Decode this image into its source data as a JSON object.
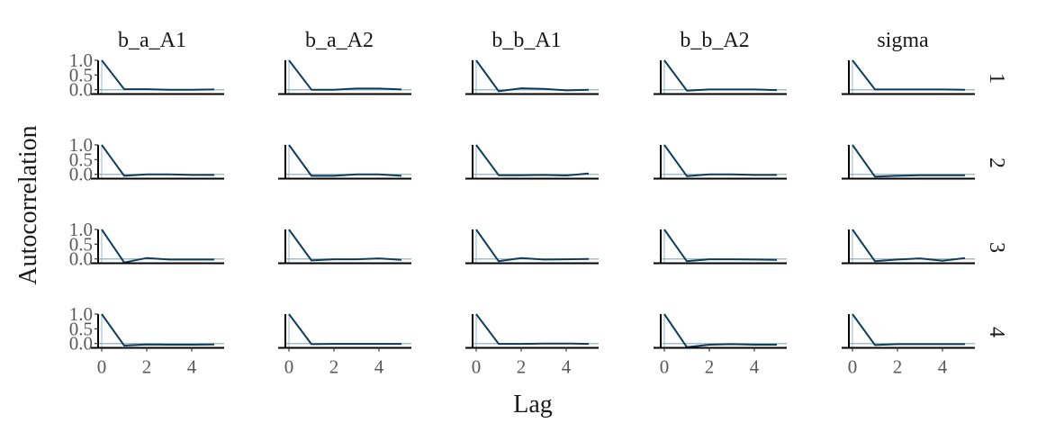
{
  "chart_data": {
    "type": "line",
    "facets_x": [
      "b_a_A1",
      "b_a_A2",
      "b_b_A1",
      "b_b_A2",
      "sigma"
    ],
    "facets_y": [
      "1",
      "2",
      "3",
      "4"
    ],
    "xlabel": "Lag",
    "ylabel": "Autocorrelation",
    "x": [
      0,
      1,
      2,
      3,
      4,
      5
    ],
    "xticks": [
      "0",
      "2",
      "4"
    ],
    "yticks": [
      "0.0",
      "0.5",
      "1.0"
    ],
    "xlim": [
      0,
      5
    ],
    "ylim": [
      -0.1,
      1.0
    ],
    "series_color": "#0f3d5c",
    "panels": [
      [
        [
          1,
          0.02,
          0.02,
          0.0,
          0.0,
          0.01
        ],
        [
          1,
          0.0,
          0.0,
          0.04,
          0.04,
          0.01
        ],
        [
          1,
          -0.05,
          0.05,
          0.03,
          -0.02,
          0.0
        ],
        [
          1,
          -0.03,
          0.01,
          0.01,
          0.01,
          -0.01
        ],
        [
          1,
          0.01,
          0.01,
          0.01,
          0.01,
          0.0
        ]
      ],
      [
        [
          1,
          -0.05,
          0.0,
          0.0,
          -0.02,
          -0.02
        ],
        [
          1,
          -0.05,
          -0.05,
          0.0,
          0.0,
          -0.05
        ],
        [
          1,
          -0.03,
          -0.03,
          -0.02,
          -0.04,
          0.03
        ],
        [
          1,
          -0.06,
          0.0,
          0.0,
          -0.02,
          -0.02
        ],
        [
          1,
          -0.08,
          -0.05,
          -0.03,
          -0.03,
          -0.03
        ]
      ],
      [
        [
          1,
          -0.12,
          0.03,
          -0.02,
          -0.02,
          -0.02
        ],
        [
          1,
          -0.05,
          -0.01,
          -0.01,
          0.02,
          -0.03
        ],
        [
          1,
          -0.08,
          0.03,
          -0.02,
          -0.01,
          0.0
        ],
        [
          1,
          -0.08,
          -0.01,
          -0.01,
          -0.02,
          -0.03
        ],
        [
          1,
          -0.08,
          -0.02,
          0.02,
          -0.06,
          0.03
        ]
      ],
      [
        [
          1,
          -0.07,
          -0.03,
          -0.04,
          -0.04,
          -0.03
        ],
        [
          1,
          -0.02,
          -0.01,
          -0.01,
          -0.01,
          -0.01
        ],
        [
          1,
          -0.01,
          -0.01,
          0.0,
          0.0,
          -0.01
        ],
        [
          1,
          -0.12,
          -0.04,
          -0.02,
          -0.04,
          -0.04
        ],
        [
          1,
          -0.05,
          -0.02,
          -0.02,
          -0.02,
          -0.02
        ]
      ]
    ]
  }
}
